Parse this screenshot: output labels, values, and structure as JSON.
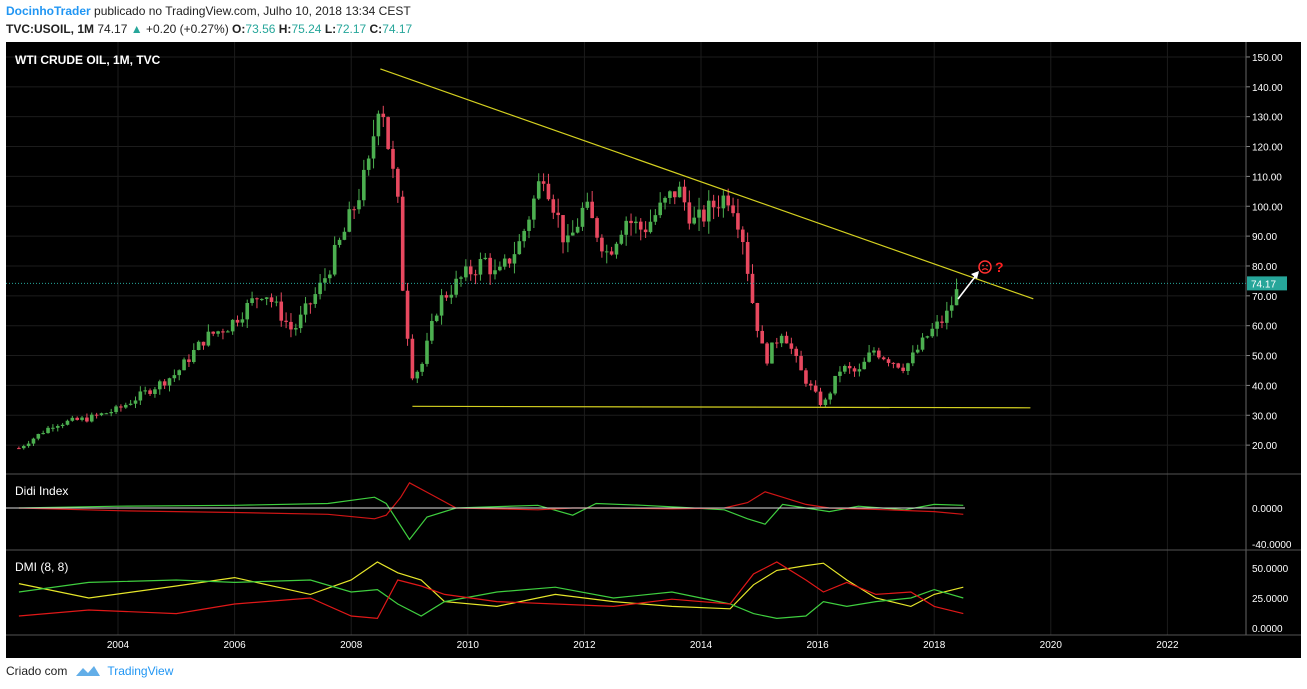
{
  "header": {
    "author": "DocinhoTrader",
    "published_text": "publicado no TradingView.com, Julho 10, 2018 13:34 CEST",
    "symbol": "TVC:USOIL, 1M",
    "last": "74.17",
    "change": "+0.20 (+0.27%)",
    "open_label": "O:",
    "open": "73.56",
    "high_label": "H:",
    "high": "75.24",
    "low_label": "L:",
    "low": "72.17",
    "close_label": "C:",
    "close": "74.17"
  },
  "footer": {
    "created_with": "Criado com",
    "brand": "TradingView"
  },
  "colors": {
    "background": "#000000",
    "up": "#4caf50",
    "down": "#e8485f",
    "trendline": "#d4d020",
    "grid": "#1c1c1c",
    "price_line": "#26a69a",
    "didi_green": "#3fce3f",
    "didi_red": "#d01515",
    "dmi_yellow": "#e6e62a",
    "dmi_green": "#3fce3f",
    "dmi_red": "#e01818"
  },
  "chart_data": [
    {
      "type": "candlestick",
      "title": "WTI CRUDE OIL, 1M, TVC",
      "x_ticks": [
        "2004",
        "2006",
        "2008",
        "2010",
        "2012",
        "2014",
        "2016",
        "2018",
        "2020",
        "2022"
      ],
      "y_ticks": [
        "20.00",
        "30.00",
        "40.00",
        "50.00",
        "60.00",
        "70.00",
        "80.00",
        "90.00",
        "100.00",
        "110.00",
        "120.00",
        "130.00",
        "140.00",
        "150.00"
      ],
      "ylim": [
        11,
        153
      ],
      "last_price_label": "74.17",
      "price_points": [
        {
          "date": "2002.30",
          "price": 19
        },
        {
          "date": "2002.90",
          "price": 27
        },
        {
          "date": "2003.50",
          "price": 29
        },
        {
          "date": "2004.00",
          "price": 32
        },
        {
          "date": "2004.50",
          "price": 38
        },
        {
          "date": "2005.00",
          "price": 44
        },
        {
          "date": "2005.50",
          "price": 56
        },
        {
          "date": "2005.90",
          "price": 60
        },
        {
          "date": "2006.50",
          "price": 72
        },
        {
          "date": "2007.00",
          "price": 58
        },
        {
          "date": "2007.50",
          "price": 74
        },
        {
          "date": "2007.90",
          "price": 92
        },
        {
          "date": "2008.30",
          "price": 113
        },
        {
          "date": "2008.50",
          "price": 140
        },
        {
          "date": "2008.60",
          "price": 125
        },
        {
          "date": "2008.80",
          "price": 100
        },
        {
          "date": "2008.90",
          "price": 68
        },
        {
          "date": "2009.05",
          "price": 44
        },
        {
          "date": "2009.20",
          "price": 46
        },
        {
          "date": "2009.50",
          "price": 68
        },
        {
          "date": "2009.90",
          "price": 76
        },
        {
          "date": "2010.30",
          "price": 82
        },
        {
          "date": "2010.50",
          "price": 76
        },
        {
          "date": "2010.90",
          "price": 88
        },
        {
          "date": "2011.30",
          "price": 112
        },
        {
          "date": "2011.70",
          "price": 86
        },
        {
          "date": "2012.00",
          "price": 100
        },
        {
          "date": "2012.40",
          "price": 84
        },
        {
          "date": "2012.70",
          "price": 96
        },
        {
          "date": "2013.00",
          "price": 92
        },
        {
          "date": "2013.60",
          "price": 106
        },
        {
          "date": "2013.90",
          "price": 94
        },
        {
          "date": "2014.30",
          "price": 102
        },
        {
          "date": "2014.50",
          "price": 104
        },
        {
          "date": "2014.70",
          "price": 92
        },
        {
          "date": "2014.90",
          "price": 66
        },
        {
          "date": "2015.10",
          "price": 48
        },
        {
          "date": "2015.40",
          "price": 59
        },
        {
          "date": "2015.70",
          "price": 45
        },
        {
          "date": "2015.95",
          "price": 37
        },
        {
          "date": "2016.10",
          "price": 33
        },
        {
          "date": "2016.40",
          "price": 46
        },
        {
          "date": "2016.70",
          "price": 44
        },
        {
          "date": "2016.95",
          "price": 52
        },
        {
          "date": "2017.20",
          "price": 49
        },
        {
          "date": "2017.50",
          "price": 46
        },
        {
          "date": "2017.90",
          "price": 57
        },
        {
          "date": "2018.20",
          "price": 63
        },
        {
          "date": "2018.45",
          "price": 74
        }
      ],
      "trendlines": [
        {
          "from": {
            "date": "2008.50",
            "price": 146
          },
          "to": {
            "date": "2019.70",
            "price": 69
          }
        },
        {
          "from": {
            "date": "2009.05",
            "price": 33
          },
          "to": {
            "date": "2019.65",
            "price": 32.5
          }
        }
      ],
      "annotation": "?"
    },
    {
      "type": "line",
      "title": "Didi Index",
      "y_ticks": [
        "0.0000",
        "-40.0000"
      ],
      "series": [
        {
          "color": "green",
          "points": [
            [
              2002.3,
              0
            ],
            [
              2004,
              2
            ],
            [
              2006,
              3
            ],
            [
              2007.6,
              5
            ],
            [
              2008.4,
              12
            ],
            [
              2008.6,
              5
            ],
            [
              2008.85,
              -20
            ],
            [
              2009.0,
              -35
            ],
            [
              2009.3,
              -10
            ],
            [
              2009.8,
              0
            ],
            [
              2011.2,
              3
            ],
            [
              2011.8,
              -8
            ],
            [
              2012.2,
              5
            ],
            [
              2013.0,
              3
            ],
            [
              2013.6,
              1
            ],
            [
              2014.4,
              -2
            ],
            [
              2014.8,
              -12
            ],
            [
              2015.1,
              -18
            ],
            [
              2015.4,
              4
            ],
            [
              2015.8,
              0
            ],
            [
              2016.2,
              -4
            ],
            [
              2016.7,
              2
            ],
            [
              2017.5,
              -2
            ],
            [
              2018.0,
              4
            ],
            [
              2018.5,
              3
            ]
          ]
        },
        {
          "color": "red",
          "points": [
            [
              2002.3,
              0
            ],
            [
              2004,
              -3
            ],
            [
              2006,
              -5
            ],
            [
              2007.6,
              -7
            ],
            [
              2008.4,
              -12
            ],
            [
              2008.6,
              -8
            ],
            [
              2008.85,
              12
            ],
            [
              2009.0,
              28
            ],
            [
              2009.4,
              14
            ],
            [
              2009.8,
              0
            ],
            [
              2011.2,
              -2
            ],
            [
              2011.8,
              0
            ],
            [
              2012.5,
              0
            ],
            [
              2013.5,
              -1
            ],
            [
              2014.4,
              0
            ],
            [
              2014.8,
              6
            ],
            [
              2015.1,
              18
            ],
            [
              2015.4,
              12
            ],
            [
              2015.8,
              4
            ],
            [
              2016.2,
              0
            ],
            [
              2017.2,
              -2
            ],
            [
              2018.0,
              -4
            ],
            [
              2018.5,
              -7
            ]
          ]
        }
      ]
    },
    {
      "type": "line",
      "title": "DMI (8, 8)",
      "y_ticks": [
        "50.0000",
        "25.0000",
        "0.0000"
      ],
      "series": [
        {
          "color": "yellow",
          "points": [
            [
              2002.3,
              37
            ],
            [
              2003.5,
              25
            ],
            [
              2005.0,
              35
            ],
            [
              2006.0,
              42
            ],
            [
              2007.3,
              28
            ],
            [
              2008.0,
              40
            ],
            [
              2008.45,
              55
            ],
            [
              2008.8,
              46
            ],
            [
              2009.2,
              40
            ],
            [
              2009.6,
              22
            ],
            [
              2010.5,
              18
            ],
            [
              2011.5,
              28
            ],
            [
              2012.5,
              22
            ],
            [
              2013.5,
              18
            ],
            [
              2014.5,
              16
            ],
            [
              2014.9,
              36
            ],
            [
              2015.3,
              48
            ],
            [
              2015.8,
              52
            ],
            [
              2016.1,
              54
            ],
            [
              2016.5,
              40
            ],
            [
              2017.0,
              25
            ],
            [
              2017.6,
              18
            ],
            [
              2018.0,
              28
            ],
            [
              2018.5,
              34
            ]
          ]
        },
        {
          "color": "green",
          "points": [
            [
              2002.3,
              30
            ],
            [
              2003.5,
              38
            ],
            [
              2005.0,
              40
            ],
            [
              2006.0,
              38
            ],
            [
              2007.3,
              40
            ],
            [
              2008.0,
              30
            ],
            [
              2008.45,
              32
            ],
            [
              2008.8,
              20
            ],
            [
              2009.2,
              10
            ],
            [
              2009.6,
              22
            ],
            [
              2010.5,
              30
            ],
            [
              2011.5,
              34
            ],
            [
              2012.5,
              25
            ],
            [
              2013.5,
              30
            ],
            [
              2014.5,
              20
            ],
            [
              2014.9,
              12
            ],
            [
              2015.3,
              8
            ],
            [
              2015.8,
              10
            ],
            [
              2016.1,
              22
            ],
            [
              2016.5,
              18
            ],
            [
              2017.0,
              22
            ],
            [
              2017.6,
              25
            ],
            [
              2018.0,
              32
            ],
            [
              2018.5,
              25
            ]
          ]
        },
        {
          "color": "red",
          "points": [
            [
              2002.3,
              10
            ],
            [
              2003.5,
              15
            ],
            [
              2005.0,
              12
            ],
            [
              2006.0,
              20
            ],
            [
              2007.3,
              25
            ],
            [
              2008.0,
              10
            ],
            [
              2008.45,
              8
            ],
            [
              2008.8,
              40
            ],
            [
              2009.2,
              35
            ],
            [
              2009.6,
              28
            ],
            [
              2010.5,
              22
            ],
            [
              2011.5,
              20
            ],
            [
              2012.5,
              18
            ],
            [
              2013.5,
              24
            ],
            [
              2014.5,
              20
            ],
            [
              2014.9,
              45
            ],
            [
              2015.3,
              55
            ],
            [
              2015.8,
              40
            ],
            [
              2016.1,
              30
            ],
            [
              2016.5,
              38
            ],
            [
              2017.0,
              28
            ],
            [
              2017.6,
              30
            ],
            [
              2018.0,
              18
            ],
            [
              2018.5,
              12
            ]
          ]
        }
      ]
    }
  ]
}
